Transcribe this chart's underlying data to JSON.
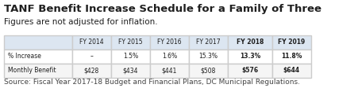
{
  "title": "TANF Benefit Increase Schedule for a Family of Three",
  "subtitle": "Figures are not adjusted for inflation.",
  "source": "Source: Fiscal Year 2017-18 Budget and Financial Plans, DC Municipal Regulations.",
  "columns": [
    "",
    "FY 2014",
    "FY 2015",
    "FY 2016",
    "FY 2017",
    "FY 2018",
    "FY 2019"
  ],
  "rows": [
    [
      "% Increase",
      "–",
      "1.5%",
      "1.6%",
      "15.3%",
      "13.3%",
      "11.8%"
    ],
    [
      "Monthly Benefit",
      "$428",
      "$434",
      "$441",
      "$508",
      "$576",
      "$644"
    ]
  ],
  "header_bold_cols": [
    4,
    5
  ],
  "bg_color": "#ffffff",
  "header_bg": "#dce6f1",
  "row_bg": [
    "#ffffff",
    "#f2f2f2"
  ],
  "border_color": "#aaaaaa",
  "text_color": "#1f1f1f",
  "title_fontsize": 9.5,
  "subtitle_fontsize": 7.5,
  "table_fontsize": 7.5,
  "source_fontsize": 6.5
}
